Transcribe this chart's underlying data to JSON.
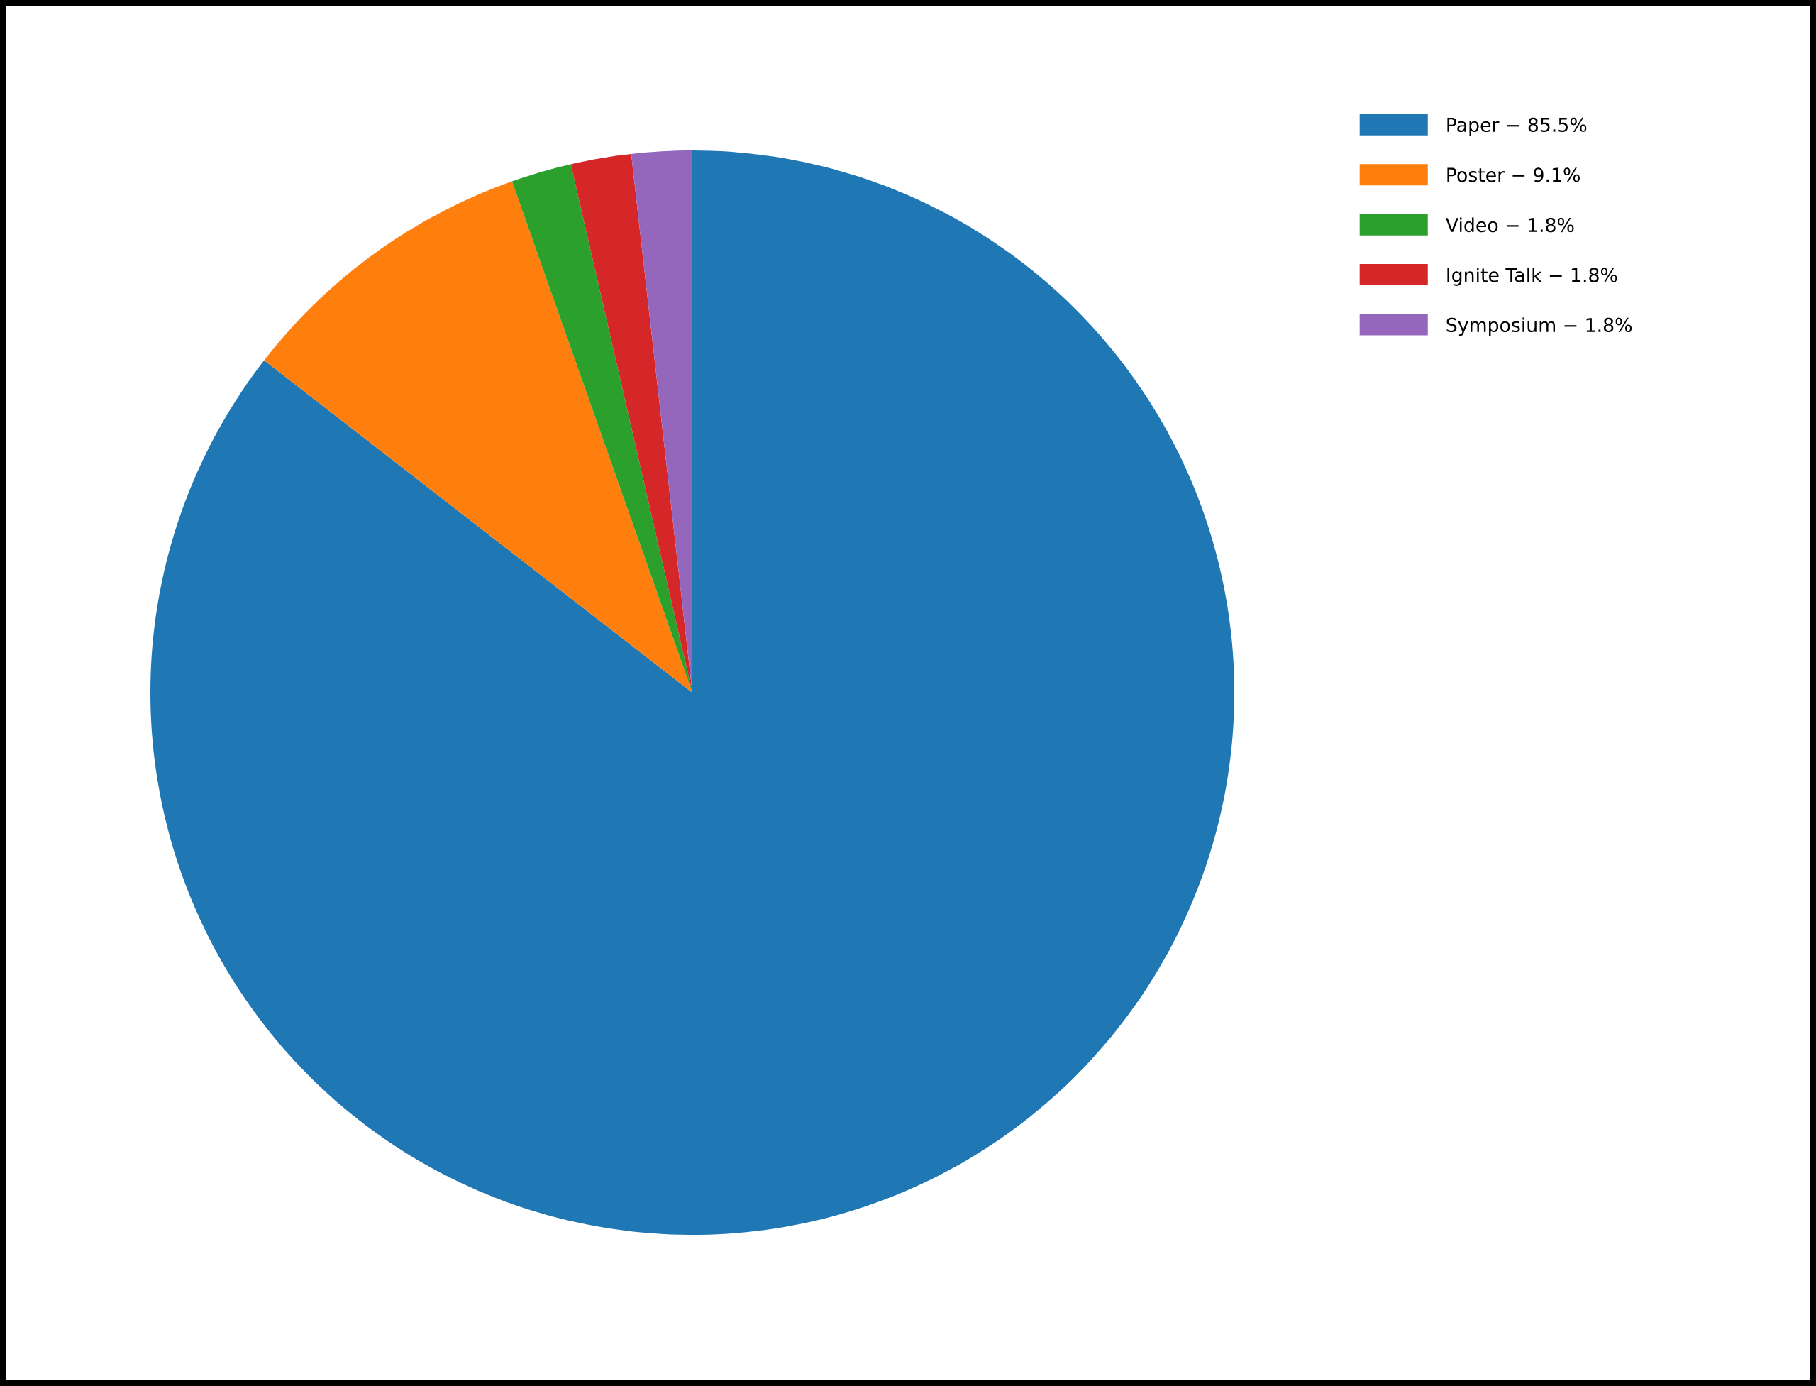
{
  "chart_data": {
    "type": "pie",
    "categories": [
      "Paper − 85.5%",
      "Poster − 9.1%",
      "Video − 1.8%",
      "Ignite Talk − 1.8%",
      "Symposium − 1.8%"
    ],
    "values": [
      85.5,
      9.1,
      1.8,
      1.8,
      1.8
    ],
    "colors": [
      "#1f77b4",
      "#ff7f0e",
      "#2ca02c",
      "#d62728",
      "#9467bd"
    ],
    "legend": "top right"
  }
}
